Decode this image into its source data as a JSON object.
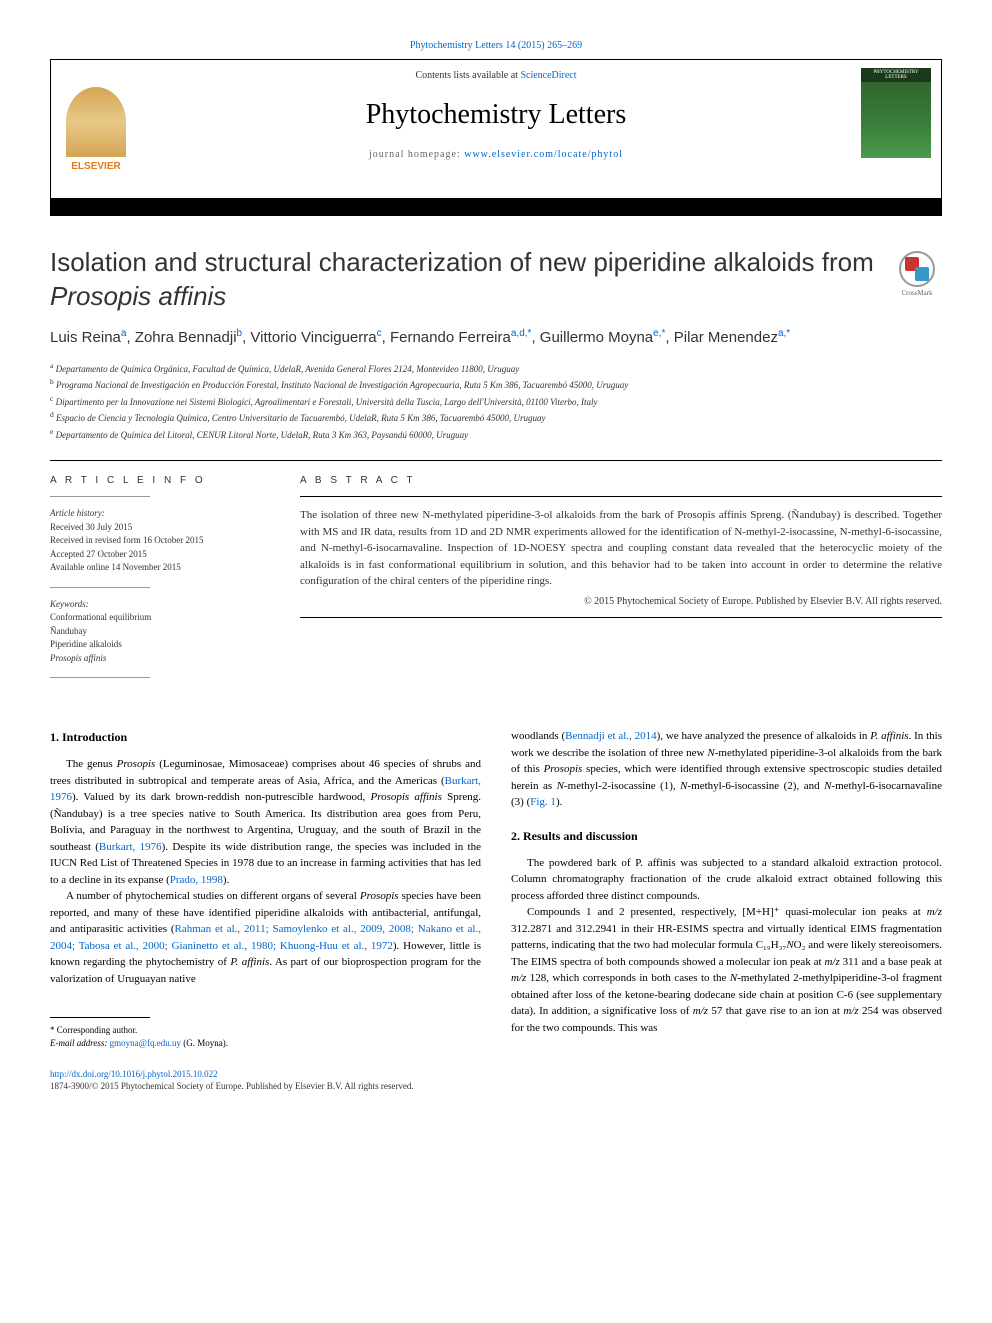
{
  "top_citation": {
    "prefix": "",
    "link_text": "Phytochemistry Letters 14 (2015) 265–269"
  },
  "header": {
    "contents_prefix": "Contents lists available at ",
    "contents_link": "ScienceDirect",
    "journal_name": "Phytochemistry Letters",
    "homepage_prefix": "journal homepage: ",
    "homepage_link": "www.elsevier.com/locate/phytol",
    "elsevier_label": "ELSEVIER",
    "cover_label": "PHYTOCHEMISTRY LETTERS"
  },
  "crossmark_label": "CrossMark",
  "article": {
    "title_pre": "Isolation and structural characterization of new piperidine alkaloids from ",
    "title_em": "Prosopis affinis",
    "authors_html": "Luis Reina<sup>a</sup>, Zohra Bennadji<sup>b</sup>, Vittorio Vinciguerra<sup>c</sup>, Fernando Ferreira<sup>a,d,*</sup>, Guillermo Moyna<sup>e,*</sup>, Pilar Menendez<sup>a,*</sup>",
    "affiliations": [
      "a Departamento de Química Orgánica, Facultad de Química, UdelaR, Avenida General Flores 2124, Montevideo 11800, Uruguay",
      "b Programa Nacional de Investigación en Producción Forestal, Instituto Nacional de Investigación Agropecuaria, Ruta 5 Km 386, Tacuarembó 45000, Uruguay",
      "c Dipartimento per la Innovazione nei Sistemi Biologici, Agroalimentari e Forestali, Università della Tuscia, Largo dell'Università, 01100 Viterbo, Italy",
      "d Espacio de Ciencia y Tecnología Química, Centro Universitario de Tacuarembó, UdelaR, Ruta 5 Km 386, Tacuarembó 45000, Uruguay",
      "e Departamento de Química del Litoral, CENUR Litoral Norte, UdelaR, Ruta 3 Km 363, Paysandú 60000, Uruguay"
    ]
  },
  "article_info": {
    "heading": "A R T I C L E  I N F O",
    "history_label": "Article history:",
    "history": [
      "Received 30 July 2015",
      "Received in revised form 16 October 2015",
      "Accepted 27 October 2015",
      "Available online 14 November 2015"
    ],
    "keywords_label": "Keywords:",
    "keywords": [
      "Conformational equilibrium",
      "Ñandubay",
      "Piperidine alkaloids",
      "Prosopis affinis"
    ]
  },
  "abstract": {
    "heading": "A B S T R A C T",
    "text": "The isolation of three new N-methylated piperidine-3-ol alkaloids from the bark of Prosopis affinis Spreng. (Ñandubay) is described. Together with MS and IR data, results from 1D and 2D NMR experiments allowed for the identification of N-methyl-2-isocassine, N-methyl-6-isocassine, and N-methyl-6-isocarnavaline. Inspection of 1D-NOESY spectra and coupling constant data revealed that the heterocyclic moiety of the alkaloids is in fast conformational equilibrium in solution, and this behavior had to be taken into account in order to determine the relative configuration of the chiral centers of the piperidine rings.",
    "copyright": "© 2015 Phytochemical Society of Europe. Published by Elsevier B.V. All rights reserved."
  },
  "sections": {
    "intro_heading": "1. Introduction",
    "intro_p1": "The genus Prosopis (Leguminosae, Mimosaceae) comprises about 46 species of shrubs and trees distributed in subtropical and temperate areas of Asia, Africa, and the Americas (Burkart, 1976). Valued by its dark brown-reddish non-putrescible hardwood, Prosopis affinis Spreng. (Ñandubay) is a tree species native to South America. Its distribution area goes from Peru, Bolivia, and Paraguay in the northwest to Argentina, Uruguay, and the south of Brazil in the southeast (Burkart, 1976). Despite its wide distribution range, the species was included in the IUCN Red List of Threatened Species in 1978 due to an increase in farming activities that has led to a decline in its expanse (Prado, 1998).",
    "intro_p2": "A number of phytochemical studies on different organs of several Prosopis species have been reported, and many of these have identified piperidine alkaloids with antibacterial, antifungal, and antiparasitic activities (Rahman et al., 2011; Samoylenko et al., 2009, 2008; Nakano et al., 2004; Tabosa et al., 2000; Gianinetto et al., 1980; Khuong-Huu et al., 1972). However, little is known regarding the phytochemistry of P. affinis. As part of our bioprospection program for the valorization of Uruguayan native",
    "col2_p1": "woodlands (Bennadji et al., 2014), we have analyzed the presence of alkaloids in P. affinis. In this work we describe the isolation of three new N-methylated piperidine-3-ol alkaloids from the bark of this Prosopis species, which were identified through extensive spectroscopic studies detailed herein as N-methyl-2-isocassine (1), N-methyl-6-isocassine (2), and N-methyl-6-isocarnavaline (3) (Fig. 1).",
    "results_heading": "2. Results and discussion",
    "results_p1": "The powdered bark of P. affinis was subjected to a standard alkaloid extraction protocol. Column chromatography fractionation of the crude alkaloid extract obtained following this process afforded three distinct compounds.",
    "results_p2": "Compounds 1 and 2 presented, respectively, [M+H]⁺ quasi-molecular ion peaks at m/z 312.2871 and 312.2941 in their HR-ESIMS spectra and virtually identical EIMS fragmentation patterns, indicating that the two had molecular formula C₁₉H₃₇NO₂ and were likely stereoisomers. The EIMS spectra of both compounds showed a molecular ion peak at m/z 311 and a base peak at m/z 128, which corresponds in both cases to the N-methylated 2-methylpiperidine-3-ol fragment obtained after loss of the ketone-bearing dodecane side chain at position C-6 (see supplementary data). In addition, a significative loss of m/z 57 that gave rise to an ion at m/z 254 was observed for the two compounds. This was"
  },
  "footnote": {
    "corr": "* Corresponding author.",
    "email_label": "E-mail address: ",
    "email": "gmoyna@fq.edu.uy",
    "email_suffix": " (G. Moyna)."
  },
  "footer": {
    "doi": "http://dx.doi.org/10.1016/j.phytol.2015.10.022",
    "issn_copy": "1874-3900/© 2015 Phytochemical Society of Europe. Published by Elsevier B.V. All rights reserved."
  },
  "colors": {
    "link": "#0066cc",
    "elsevier_orange": "#e67817",
    "text": "#333333"
  }
}
